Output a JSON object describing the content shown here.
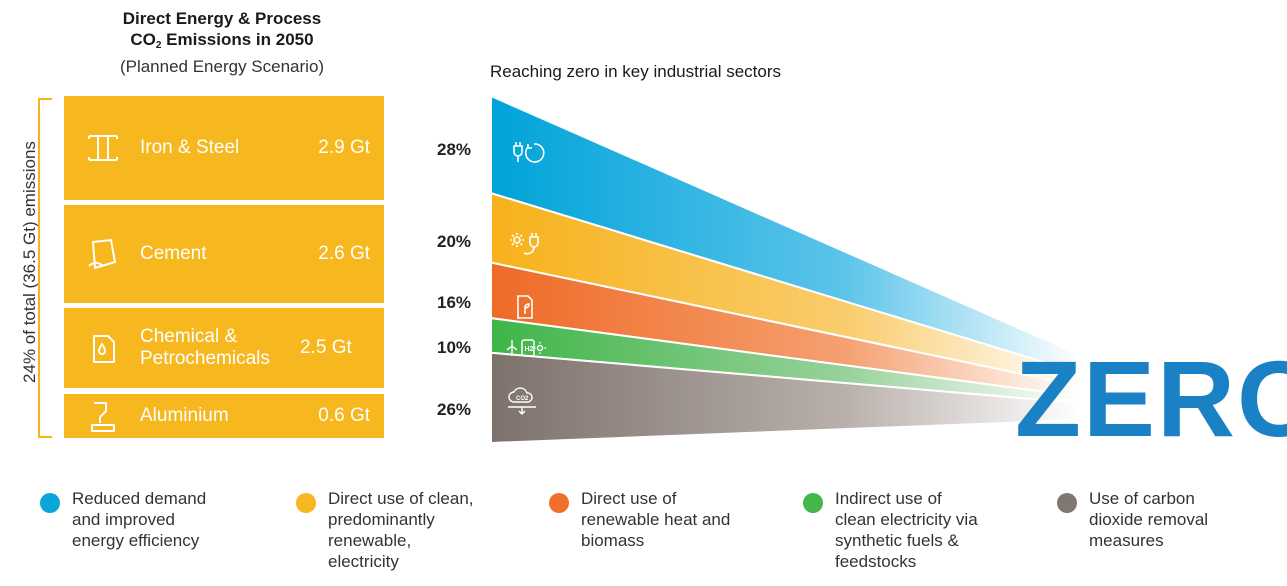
{
  "left_panel": {
    "title_line1": "Direct Energy & Process",
    "title_line2_prefix": "CO",
    "title_line2_sub": "2",
    "title_line2_suffix": " Emissions in 2050",
    "title_line3": "(Planned Energy Scenario)",
    "vertical_label": "24% of total (36.5 Gt) emissions",
    "sectors": [
      {
        "name": "Iron & Steel",
        "value": "2.9 Gt",
        "icon": "steel-beam-icon"
      },
      {
        "name": "Cement",
        "value": "2.6 Gt",
        "icon": "cement-bag-icon"
      },
      {
        "name": "Chemical & Petrochemicals",
        "value": "2.5 Gt",
        "icon": "oil-canister-icon"
      },
      {
        "name": "Aluminium",
        "value": "0.6 Gt",
        "icon": "aluminium-pour-icon"
      }
    ],
    "color": "#f7b71f"
  },
  "chart_data": {
    "type": "area",
    "title": "Reaching zero in key industrial sectors",
    "end_label": "ZERO",
    "series": [
      {
        "label": "28%",
        "value": 28,
        "color": "#0aa6d9",
        "icon": "plug-recycle-icon"
      },
      {
        "label": "20%",
        "value": 20,
        "color": "#f7b71f",
        "icon": "sun-plug-icon"
      },
      {
        "label": "16%",
        "value": 16,
        "color": "#f0702b",
        "icon": "biomass-leaf-icon"
      },
      {
        "label": "10%",
        "value": 10,
        "color": "#45b649",
        "icon": "wind-h2-sun-icon"
      },
      {
        "label": "26%",
        "value": 26,
        "color": "#827672",
        "icon": "co2-cloud-icon"
      }
    ]
  },
  "legend": {
    "items": [
      {
        "label": [
          "Reduced demand",
          "and improved",
          "energy efficiency"
        ],
        "color": "#0aa6d9"
      },
      {
        "label": [
          "Direct use of clean,",
          "predominantly",
          "renewable,",
          "electricity"
        ],
        "color": "#f7b71f"
      },
      {
        "label": [
          "Direct use of",
          "renewable heat and",
          "biomass"
        ],
        "color": "#f0702b"
      },
      {
        "label": [
          "Indirect use of",
          "clean electricity via",
          "synthetic fuels &",
          "feedstocks"
        ],
        "color": "#45b649"
      },
      {
        "label": [
          "Use of carbon",
          "dioxide removal",
          "measures"
        ],
        "color": "#827672"
      }
    ]
  }
}
